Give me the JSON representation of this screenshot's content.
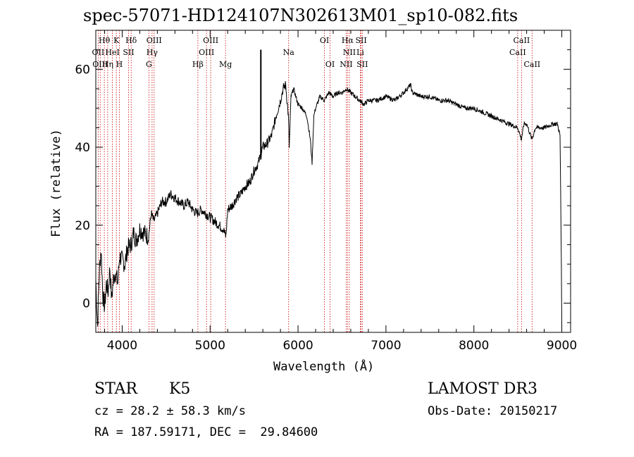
{
  "chart_data": {
    "type": "line",
    "title": "spec-57071-HD124107N302613M01_sp10-082.fits",
    "xlabel": "Wavelength (Å)",
    "ylabel": "Flux (relative)",
    "xlim": [
      3700,
      9100
    ],
    "ylim": [
      -7.5,
      70
    ],
    "x_ticks": [
      4000,
      5000,
      6000,
      7000,
      8000,
      9000
    ],
    "y_ticks": [
      0,
      20,
      40,
      60
    ],
    "grid": false,
    "series": [
      {
        "values": [
          [
            3700,
            6
          ],
          [
            3720,
            -6
          ],
          [
            3740,
            8
          ],
          [
            3760,
            14
          ],
          [
            3780,
            2
          ],
          [
            3800,
            -1
          ],
          [
            3820,
            5
          ],
          [
            3840,
            3
          ],
          [
            3860,
            9
          ],
          [
            3880,
            1
          ],
          [
            3900,
            6
          ],
          [
            3920,
            8
          ],
          [
            3950,
            5
          ],
          [
            3970,
            12
          ],
          [
            4000,
            11
          ],
          [
            4030,
            10
          ],
          [
            4060,
            14
          ],
          [
            4100,
            15
          ],
          [
            4130,
            18
          ],
          [
            4160,
            16
          ],
          [
            4200,
            19
          ],
          [
            4250,
            18
          ],
          [
            4300,
            17
          ],
          [
            4330,
            23
          ],
          [
            4360,
            21
          ],
          [
            4400,
            23
          ],
          [
            4450,
            26
          ],
          [
            4500,
            26
          ],
          [
            4550,
            28
          ],
          [
            4600,
            27
          ],
          [
            4650,
            26
          ],
          [
            4700,
            25
          ],
          [
            4750,
            26
          ],
          [
            4800,
            24
          ],
          [
            4850,
            23
          ],
          [
            4900,
            24
          ],
          [
            4950,
            23
          ],
          [
            5000,
            22
          ],
          [
            5050,
            21
          ],
          [
            5100,
            20
          ],
          [
            5150,
            19
          ],
          [
            5180,
            17
          ],
          [
            5200,
            24
          ],
          [
            5250,
            25
          ],
          [
            5300,
            27
          ],
          [
            5350,
            28
          ],
          [
            5400,
            30
          ],
          [
            5450,
            31
          ],
          [
            5500,
            34
          ],
          [
            5550,
            36
          ],
          [
            5575,
            38
          ],
          [
            5600,
            40
          ],
          [
            5650,
            41
          ],
          [
            5700,
            43
          ],
          [
            5750,
            48
          ],
          [
            5800,
            52
          ],
          [
            5830,
            55
          ],
          [
            5860,
            56
          ],
          [
            5890,
            48
          ],
          [
            5900,
            40
          ],
          [
            5920,
            53
          ],
          [
            5950,
            55
          ],
          [
            6000,
            51
          ],
          [
            6050,
            50
          ],
          [
            6100,
            48
          ],
          [
            6140,
            42
          ],
          [
            6160,
            36
          ],
          [
            6180,
            48
          ],
          [
            6200,
            50
          ],
          [
            6250,
            53
          ],
          [
            6300,
            52
          ],
          [
            6350,
            54
          ],
          [
            6400,
            53
          ],
          [
            6450,
            54
          ],
          [
            6500,
            54
          ],
          [
            6550,
            55
          ],
          [
            6600,
            54
          ],
          [
            6650,
            53
          ],
          [
            6700,
            52
          ],
          [
            6750,
            51
          ],
          [
            6800,
            52
          ],
          [
            6900,
            52
          ],
          [
            7000,
            53
          ],
          [
            7100,
            52
          ],
          [
            7200,
            54
          ],
          [
            7280,
            56
          ],
          [
            7300,
            54
          ],
          [
            7400,
            53
          ],
          [
            7500,
            53
          ],
          [
            7600,
            52
          ],
          [
            7700,
            52
          ],
          [
            7800,
            51
          ],
          [
            7900,
            50
          ],
          [
            8000,
            50
          ],
          [
            8100,
            49
          ],
          [
            8200,
            48
          ],
          [
            8300,
            47
          ],
          [
            8400,
            46
          ],
          [
            8500,
            45
          ],
          [
            8540,
            42
          ],
          [
            8570,
            46
          ],
          [
            8600,
            46
          ],
          [
            8660,
            42
          ],
          [
            8700,
            45
          ],
          [
            8800,
            45
          ],
          [
            8900,
            46
          ],
          [
            8950,
            46
          ],
          [
            8980,
            43
          ],
          [
            8995,
            10
          ],
          [
            9000,
            -6
          ]
        ]
      }
    ],
    "spike": {
      "x": 5577,
      "from": 37,
      "to": 65
    },
    "line_labels": [
      {
        "text": "Hθ",
        "x": 3797,
        "row": 1
      },
      {
        "text": "K",
        "x": 3934,
        "row": 1
      },
      {
        "text": "Hδ",
        "x": 4102,
        "row": 1
      },
      {
        "text": "OIII",
        "x": 4363,
        "row": 1
      },
      {
        "text": "OIII",
        "x": 5007,
        "row": 1
      },
      {
        "text": "OI",
        "x": 6300,
        "row": 1
      },
      {
        "text": "Hα",
        "x": 6563,
        "row": 1
      },
      {
        "text": "SII",
        "x": 6717,
        "row": 1
      },
      {
        "text": "CaII",
        "x": 8542,
        "row": 1
      },
      {
        "text": "OII",
        "x": 3727,
        "row": 2
      },
      {
        "text": "HeI",
        "x": 3889,
        "row": 2
      },
      {
        "text": "SII",
        "x": 4072,
        "row": 2
      },
      {
        "text": "Hγ",
        "x": 4340,
        "row": 2
      },
      {
        "text": "OIII",
        "x": 4959,
        "row": 2
      },
      {
        "text": "Na",
        "x": 5893,
        "row": 2
      },
      {
        "text": "NII",
        "x": 6584,
        "row": 2
      },
      {
        "text": "Li",
        "x": 6708,
        "row": 2
      },
      {
        "text": "CaII",
        "x": 8498,
        "row": 2
      },
      {
        "text": "OIII",
        "x": 3750,
        "row": 3
      },
      {
        "text": "Hη",
        "x": 3835,
        "row": 3
      },
      {
        "text": "H",
        "x": 3968,
        "row": 3
      },
      {
        "text": "G",
        "x": 4304,
        "row": 3
      },
      {
        "text": "Hβ",
        "x": 4861,
        "row": 3
      },
      {
        "text": "Mg",
        "x": 5175,
        "row": 3
      },
      {
        "text": "OI",
        "x": 6364,
        "row": 3
      },
      {
        "text": "NII",
        "x": 6548,
        "row": 3
      },
      {
        "text": "SII",
        "x": 6731,
        "row": 3
      },
      {
        "text": "CaII",
        "x": 8662,
        "row": 3
      }
    ],
    "line_positions": [
      3727,
      3750,
      3797,
      3835,
      3889,
      3934,
      3968,
      4072,
      4102,
      4304,
      4340,
      4363,
      4861,
      4959,
      5007,
      5175,
      5893,
      6300,
      6364,
      6548,
      6563,
      6584,
      6708,
      6717,
      6731,
      8498,
      8542,
      8662
    ],
    "colors": {
      "spectrum": "#000000",
      "lines": "#cc0000",
      "axes": "#000000"
    }
  },
  "info": {
    "object_class": "STAR",
    "subclass": "K5",
    "survey": "LAMOST DR3",
    "redshift": "cz = 28.2 ± 58.3 km/s",
    "obs_date": "Obs-Date: 20150217",
    "coords": "RA = 187.59171, DEC =  29.84600"
  }
}
